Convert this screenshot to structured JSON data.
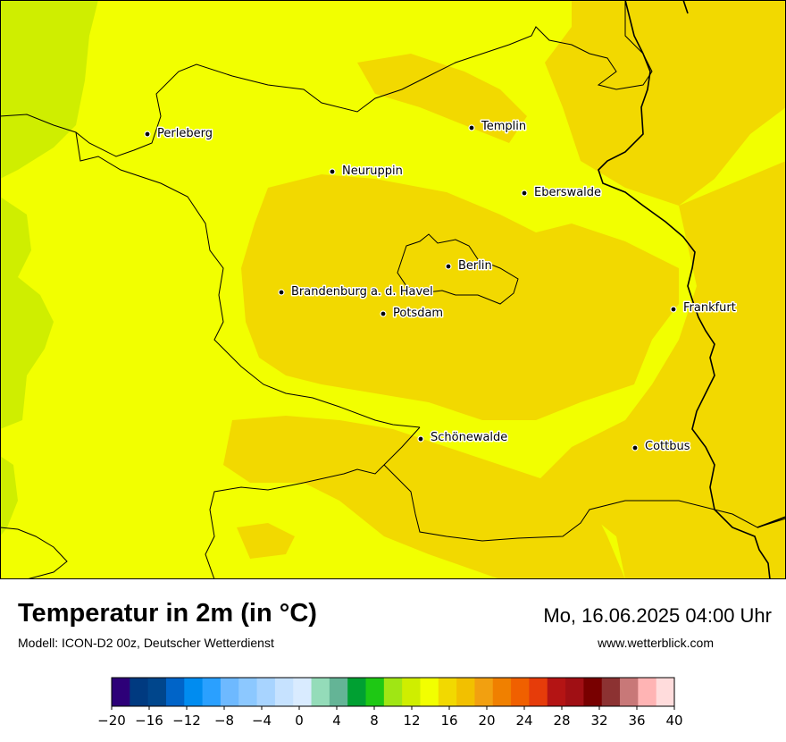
{
  "header": {
    "title": "Temperatur in 2m (in °C)",
    "subtitle": "Modell: ICON-D2 00z, Deutscher Wetterdienst",
    "datetime": "Mo, 16.06.2025 04:00 Uhr",
    "website": "www.wetterblick.com"
  },
  "map": {
    "cities": [
      {
        "name": "Perleberg"
      },
      {
        "name": "Templin"
      },
      {
        "name": "Neuruppin"
      },
      {
        "name": "Eberswalde"
      },
      {
        "name": "Berlin"
      },
      {
        "name": "Brandenburg a. d. Havel"
      },
      {
        "name": "Potsdam"
      },
      {
        "name": "Frankfurt"
      },
      {
        "name": "Schönewalde"
      },
      {
        "name": "Cottbus"
      }
    ],
    "temperature_zone_colors": {
      "12_to_14": "#cfee00",
      "14_to_16": "#f2ff00",
      "16_to_18": "#f2d900"
    }
  },
  "legend": {
    "ticks": [
      "−20",
      "−16",
      "−12",
      "−8",
      "−4",
      "0",
      "4",
      "8",
      "12",
      "16",
      "20",
      "24",
      "28",
      "32",
      "36",
      "40"
    ],
    "colors": [
      "#2d0078",
      "#003a80",
      "#00468c",
      "#0064c8",
      "#008cf0",
      "#2aa0ff",
      "#6eb9ff",
      "#8cc8ff",
      "#a8d4ff",
      "#c6e2ff",
      "#d9ebff",
      "#94dcb9",
      "#64b496",
      "#00a032",
      "#1ec814",
      "#a0e614",
      "#cfee00",
      "#f2ff00",
      "#f2d900",
      "#f2c000",
      "#f2a010",
      "#f08000",
      "#f06000",
      "#e63c0a",
      "#b41414",
      "#a00f14",
      "#780000",
      "#8c3232",
      "#c87878",
      "#ffb4b4",
      "#ffdcdc"
    ]
  }
}
